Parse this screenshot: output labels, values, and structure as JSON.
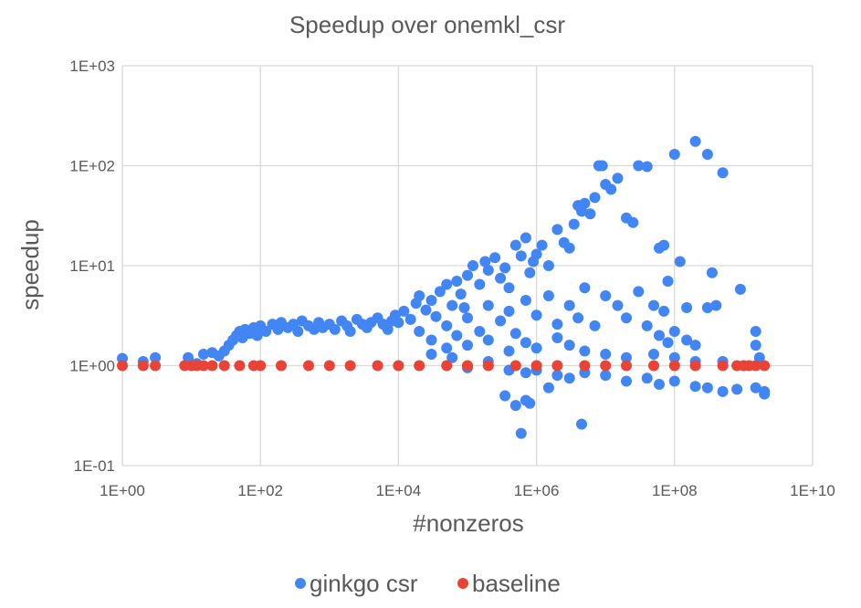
{
  "chart_data": {
    "type": "scatter",
    "title": "Speedup over onemkl_csr",
    "xlabel": "#nonzeros",
    "ylabel": "speedup",
    "x_scale": "log",
    "y_scale": "log",
    "xlim": [
      1,
      10000000000
    ],
    "ylim": [
      0.1,
      1000
    ],
    "grid": true,
    "legend_position": "bottom",
    "x_ticks": [
      "1E+00",
      "1E+02",
      "1E+04",
      "1E+06",
      "1E+08",
      "1E+10"
    ],
    "y_ticks": [
      "1E-01",
      "1E+00",
      "1E+01",
      "1E+02",
      "1E+03"
    ],
    "series": [
      {
        "name": "ginkgo csr",
        "color": "#4285f4",
        "points": [
          [
            1,
            1.18
          ],
          [
            2,
            1.1
          ],
          [
            3,
            1.2
          ],
          [
            9,
            1.2
          ],
          [
            12,
            1.05
          ],
          [
            15,
            1.3
          ],
          [
            20,
            1.35
          ],
          [
            25,
            1.25
          ],
          [
            30,
            1.4
          ],
          [
            35,
            1.6
          ],
          [
            40,
            1.8
          ],
          [
            45,
            2.0
          ],
          [
            50,
            2.2
          ],
          [
            55,
            1.9
          ],
          [
            60,
            2.3
          ],
          [
            70,
            2.1
          ],
          [
            80,
            2.4
          ],
          [
            90,
            2.0
          ],
          [
            100,
            2.5
          ],
          [
            120,
            2.2
          ],
          [
            150,
            2.6
          ],
          [
            180,
            2.3
          ],
          [
            200,
            2.7
          ],
          [
            250,
            2.4
          ],
          [
            300,
            2.6
          ],
          [
            350,
            2.2
          ],
          [
            400,
            2.8
          ],
          [
            500,
            2.5
          ],
          [
            600,
            2.3
          ],
          [
            700,
            2.7
          ],
          [
            800,
            2.4
          ],
          [
            1000,
            2.6
          ],
          [
            1200,
            2.3
          ],
          [
            1500,
            2.8
          ],
          [
            1800,
            2.5
          ],
          [
            2000,
            2.2
          ],
          [
            2500,
            2.9
          ],
          [
            3000,
            2.6
          ],
          [
            3500,
            2.4
          ],
          [
            4000,
            2.7
          ],
          [
            5000,
            3.0
          ],
          [
            6000,
            2.6
          ],
          [
            7000,
            2.3
          ],
          [
            8000,
            2.8
          ],
          [
            9000,
            3.2
          ],
          [
            10000,
            2.7
          ],
          [
            12000,
            3.5
          ],
          [
            15000,
            2.9
          ],
          [
            18000,
            4.2
          ],
          [
            20000,
            5.0
          ],
          [
            25000,
            3.6
          ],
          [
            30000,
            4.5
          ],
          [
            35000,
            3.1
          ],
          [
            40000,
            5.5
          ],
          [
            50000,
            6.5
          ],
          [
            60000,
            4.0
          ],
          [
            70000,
            7.0
          ],
          [
            80000,
            5.2
          ],
          [
            90000,
            3.8
          ],
          [
            100000,
            8.0
          ],
          [
            120000,
            10.0
          ],
          [
            150000,
            6.5
          ],
          [
            180000,
            11.0
          ],
          [
            200000,
            9.0
          ],
          [
            250000,
            12.0
          ],
          [
            300000,
            7.5
          ],
          [
            350000,
            9.5
          ],
          [
            400000,
            6.0
          ],
          [
            500000,
            16.0
          ],
          [
            600000,
            12.5
          ],
          [
            700000,
            19.0
          ],
          [
            800000,
            8.5
          ],
          [
            900000,
            11.0
          ],
          [
            1000000,
            13.0
          ],
          [
            1200000,
            16.0
          ],
          [
            1500000,
            10.0
          ],
          [
            2000000,
            23.0
          ],
          [
            2500000,
            17.0
          ],
          [
            3000000,
            15.0
          ],
          [
            3500000,
            26.0
          ],
          [
            4000000,
            40.0
          ],
          [
            4500000,
            35.0
          ],
          [
            5000000,
            42.0
          ],
          [
            6000000,
            33.0
          ],
          [
            7000000,
            48.0
          ],
          [
            8000000,
            100.0
          ],
          [
            9000000,
            100.0
          ],
          [
            10000000,
            65.0
          ],
          [
            12000000,
            58.0
          ],
          [
            15000000,
            75.0
          ],
          [
            20000000,
            30.0
          ],
          [
            25000000,
            27.0
          ],
          [
            30000000,
            100.0
          ],
          [
            40000000,
            98.0
          ],
          [
            60000000,
            15.0
          ],
          [
            70000000,
            16.0
          ],
          [
            80000000,
            7.0
          ],
          [
            100000000,
            130.0
          ],
          [
            120000000,
            11.0
          ],
          [
            150000000,
            3.8
          ],
          [
            200000000,
            175.0
          ],
          [
            300000000,
            130.0
          ],
          [
            350000000,
            8.5
          ],
          [
            500000000,
            85.0
          ],
          [
            900000000,
            5.8
          ],
          [
            20000,
            2.2
          ],
          [
            30000,
            1.8
          ],
          [
            50000,
            2.5
          ],
          [
            70000,
            2.0
          ],
          [
            100000,
            3.0
          ],
          [
            150000,
            2.2
          ],
          [
            200000,
            4.0
          ],
          [
            300000,
            2.8
          ],
          [
            400000,
            3.5
          ],
          [
            500000,
            2.1
          ],
          [
            700000,
            4.5
          ],
          [
            1000000,
            3.2
          ],
          [
            1500000,
            5.0
          ],
          [
            2000000,
            2.6
          ],
          [
            3000000,
            4.0
          ],
          [
            4000000,
            3.0
          ],
          [
            5000000,
            6.0
          ],
          [
            7000000,
            2.5
          ],
          [
            10000000,
            5.0
          ],
          [
            15000000,
            4.0
          ],
          [
            20000000,
            3.0
          ],
          [
            30000000,
            5.5
          ],
          [
            40000000,
            2.5
          ],
          [
            50000000,
            4.0
          ],
          [
            60000000,
            2.0
          ],
          [
            70000000,
            3.5
          ],
          [
            80000000,
            1.7
          ],
          [
            100000000,
            2.2
          ],
          [
            150000000,
            1.8
          ],
          [
            200000000,
            1.6
          ],
          [
            300000000,
            3.8
          ],
          [
            400000000,
            4.0
          ],
          [
            30000,
            1.3
          ],
          [
            50000,
            1.5
          ],
          [
            100000,
            1.6
          ],
          [
            200000,
            1.8
          ],
          [
            400000,
            1.4
          ],
          [
            700000,
            1.7
          ],
          [
            1000000,
            1.5
          ],
          [
            2000000,
            1.9
          ],
          [
            3000000,
            1.6
          ],
          [
            5000000,
            1.4
          ],
          [
            10000000,
            1.3
          ],
          [
            20000000,
            1.2
          ],
          [
            50000000,
            1.3
          ],
          [
            100000000,
            1.2
          ],
          [
            200000000,
            1.1
          ],
          [
            500000000,
            1.1
          ],
          [
            60000,
            1.2
          ],
          [
            100000,
            0.95
          ],
          [
            200000,
            1.1
          ],
          [
            400000,
            0.9
          ],
          [
            700000,
            0.85
          ],
          [
            1000000,
            0.9
          ],
          [
            2000000,
            0.8
          ],
          [
            3000000,
            0.75
          ],
          [
            5000000,
            0.85
          ],
          [
            10000000,
            0.8
          ],
          [
            20000000,
            0.7
          ],
          [
            40000000,
            0.75
          ],
          [
            60000000,
            0.65
          ],
          [
            100000000,
            0.7
          ],
          [
            200000000,
            0.62
          ],
          [
            300000000,
            0.6
          ],
          [
            500000000,
            0.55
          ],
          [
            800000000,
            0.58
          ],
          [
            1500000000,
            0.6
          ],
          [
            2000000000,
            0.52
          ],
          [
            2000000000,
            0.55
          ],
          [
            350000,
            0.5
          ],
          [
            500000,
            0.4
          ],
          [
            700000,
            0.45
          ],
          [
            800000,
            0.42
          ],
          [
            1500000,
            0.6
          ],
          [
            600000,
            0.21
          ],
          [
            4500000,
            0.26
          ],
          [
            1500000000,
            2.2
          ],
          [
            1500000000,
            1.6
          ],
          [
            1700000000,
            1.2
          ]
        ]
      },
      {
        "name": "baseline",
        "color": "#ea4335",
        "x_values": [
          1,
          2,
          3,
          8,
          10,
          12,
          15,
          20,
          30,
          50,
          80,
          100,
          200,
          500,
          1000,
          2000,
          5000,
          10000,
          20000,
          50000,
          100000,
          200000,
          500000,
          1000000,
          2000000,
          5000000,
          10000000,
          20000000,
          50000000,
          100000000,
          200000000,
          500000000,
          800000000,
          1000000000,
          1200000000,
          1500000000,
          2000000000
        ],
        "y_value": 1
      }
    ]
  }
}
